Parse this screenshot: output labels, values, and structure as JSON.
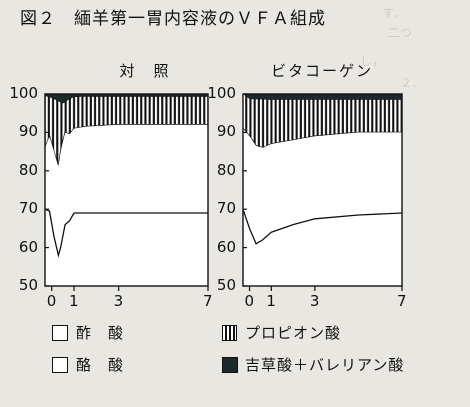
{
  "figure_title": "図２　緬羊第一胃内容液のＶＦＡ組成",
  "legend": [
    {
      "label": "酢　酸",
      "style": "white"
    },
    {
      "label": "酪　酸",
      "style": "white"
    },
    {
      "label": "プロピオン酸",
      "style": "hatch"
    },
    {
      "label": "吉草酸＋バレリアン酸",
      "style": "black"
    }
  ],
  "chart_data": [
    {
      "type": "area",
      "title": "対　照",
      "x_ticks": [
        "0",
        "1",
        "3",
        "7"
      ],
      "y_ticks": [
        "100",
        "90",
        "80",
        "70",
        "60",
        "50"
      ],
      "ylim": [
        50,
        100
      ],
      "xlim": [
        -0.3,
        7
      ],
      "series": [
        {
          "name": "吉草酸＋バレリアン酸",
          "x": [
            -0.3,
            0,
            0.5,
            0.8,
            1,
            1.5,
            3,
            5,
            7
          ],
          "values": [
            99.5,
            99.0,
            97.5,
            98.7,
            99.2,
            99.3,
            99.3,
            99.3,
            99.3
          ]
        },
        {
          "name": "プロピオン酸",
          "x": [
            -0.3,
            -0.1,
            0.1,
            0.3,
            0.4,
            0.6,
            0.8,
            1.0,
            1.5,
            3,
            5,
            7
          ],
          "values": [
            86.0,
            89.0,
            85.0,
            81.0,
            85.0,
            90.0,
            89.5,
            91.0,
            91.5,
            92.0,
            92.0,
            92.0
          ]
        },
        {
          "name": "酪　酸",
          "x": [
            -0.3,
            -0.1,
            0.1,
            0.3,
            0.4,
            0.6,
            0.8,
            1.0,
            1.5,
            3,
            5,
            7
          ],
          "values": [
            70.0,
            69.5,
            63.0,
            58.0,
            60.0,
            66.0,
            67.0,
            69.0,
            69.0,
            69.0,
            69.0,
            69.0
          ]
        }
      ]
    },
    {
      "type": "area",
      "title": "ビタコーゲン",
      "x_ticks": [
        "0",
        "1",
        "3",
        "7"
      ],
      "y_ticks": [
        "100",
        "90",
        "80",
        "70",
        "60",
        "50"
      ],
      "ylim": [
        50,
        100
      ],
      "xlim": [
        -0.3,
        7
      ],
      "series": [
        {
          "name": "吉草酸＋バレリアン酸",
          "x": [
            -0.3,
            0,
            1,
            3,
            7
          ],
          "values": [
            100.0,
            98.7,
            98.5,
            98.5,
            98.5
          ]
        },
        {
          "name": "プロピオン酸",
          "x": [
            -0.3,
            0,
            0.3,
            0.6,
            1,
            2,
            3,
            5,
            7
          ],
          "values": [
            91.0,
            89.0,
            86.5,
            86.0,
            87.0,
            88.0,
            89.0,
            90.0,
            90.0
          ]
        },
        {
          "name": "酪　酸",
          "x": [
            -0.3,
            0,
            0.3,
            0.6,
            1,
            2,
            3,
            5,
            7
          ],
          "values": [
            70.0,
            65.0,
            61.0,
            62.0,
            64.0,
            66.0,
            67.5,
            68.5,
            69.0
          ]
        }
      ]
    }
  ]
}
